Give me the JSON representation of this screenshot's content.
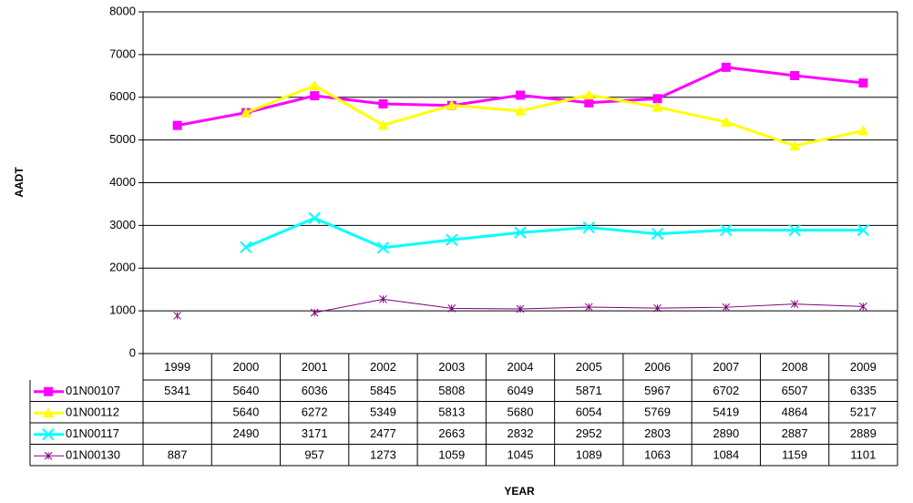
{
  "chart_data": {
    "type": "line",
    "x_label": "YEAR",
    "y_label": "AADT",
    "categories": [
      "1999",
      "2000",
      "2001",
      "2002",
      "2003",
      "2004",
      "2005",
      "2006",
      "2007",
      "2008",
      "2009"
    ],
    "series": [
      {
        "name": "01N00107",
        "color": "#ff00ff",
        "marker": "square",
        "values": [
          5341,
          5640,
          6036,
          5845,
          5808,
          6049,
          5871,
          5967,
          6702,
          6507,
          6335
        ]
      },
      {
        "name": "01N00112",
        "color": "#ffff00",
        "marker": "triangle",
        "values": [
          null,
          5640,
          6272,
          5349,
          5813,
          5680,
          6054,
          5769,
          5419,
          4864,
          5217
        ]
      },
      {
        "name": "01N00117",
        "color": "#00ffff",
        "marker": "x",
        "values": [
          null,
          2490,
          3171,
          2477,
          2663,
          2832,
          2952,
          2803,
          2890,
          2887,
          2889
        ]
      },
      {
        "name": "01N00130",
        "color": "#800080",
        "marker": "star",
        "values": [
          887,
          null,
          957,
          1273,
          1059,
          1045,
          1089,
          1063,
          1084,
          1159,
          1101
        ]
      }
    ],
    "ylim": [
      0,
      8000
    ],
    "yticks": [
      0,
      1000,
      2000,
      3000,
      4000,
      5000,
      6000,
      7000,
      8000
    ],
    "grid": true
  }
}
